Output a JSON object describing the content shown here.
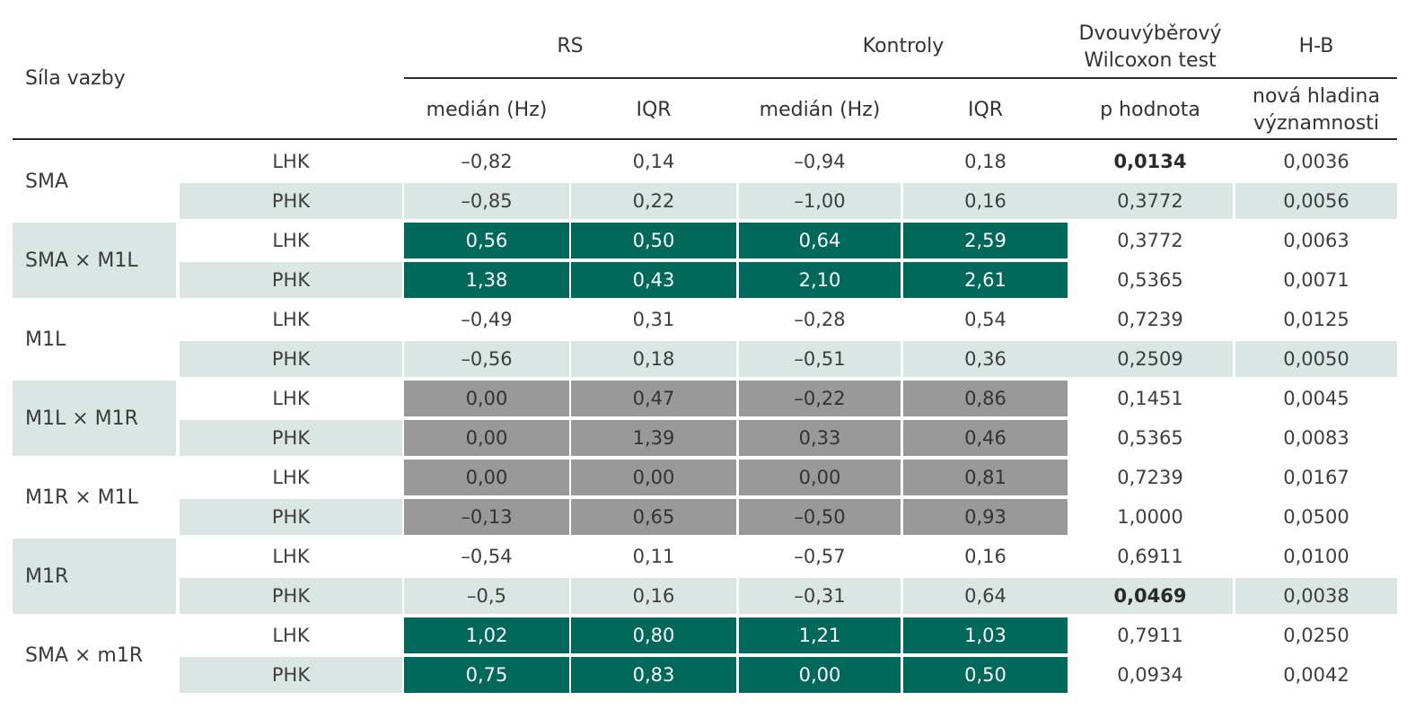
{
  "header": {
    "row_label": "Síla vazby",
    "group_rs": "RS",
    "group_kontroly": "Kontroly",
    "test_line1": "Dvouvýběrový",
    "test_line2": "Wilcoxon test",
    "hb": "H-B",
    "rs_median": "medián (Hz)",
    "rs_iqr": "IQR",
    "k_median": "medián (Hz)",
    "k_iqr": "IQR",
    "p_value": "p hodnota",
    "new_level_line1": "nová hladina",
    "new_level_line2": "významnosti"
  },
  "groups": [
    {
      "name": "SMA",
      "label_shade": "white",
      "rows": [
        {
          "hand": "LHK",
          "rs_median": "–0,82",
          "rs_iqr": "0,14",
          "k_median": "–0,94",
          "k_iqr": "0,18",
          "p": "0,0134",
          "p_bold": true,
          "hb": "0,0036",
          "style": "white"
        },
        {
          "hand": "PHK",
          "rs_median": "–0,85",
          "rs_iqr": "0,22",
          "k_median": "–1,00",
          "k_iqr": "0,16",
          "p": "0,3772",
          "p_bold": false,
          "hb": "0,0056",
          "style": "light"
        }
      ]
    },
    {
      "name": "SMA × M1L",
      "label_shade": "light",
      "rows": [
        {
          "hand": "LHK",
          "rs_median": "0,56",
          "rs_iqr": "0,50",
          "k_median": "0,64",
          "k_iqr": "2,59",
          "p": "0,3772",
          "p_bold": false,
          "hb": "0,0063",
          "style": "green"
        },
        {
          "hand": "PHK",
          "rs_median": "1,38",
          "rs_iqr": "0,43",
          "k_median": "2,10",
          "k_iqr": "2,61",
          "p": "0,5365",
          "p_bold": false,
          "hb": "0,0071",
          "style": "green"
        }
      ]
    },
    {
      "name": "M1L",
      "label_shade": "white",
      "rows": [
        {
          "hand": "LHK",
          "rs_median": "–0,49",
          "rs_iqr": "0,31",
          "k_median": "–0,28",
          "k_iqr": "0,54",
          "p": "0,7239",
          "p_bold": false,
          "hb": "0,0125",
          "style": "white"
        },
        {
          "hand": "PHK",
          "rs_median": "–0,56",
          "rs_iqr": "0,18",
          "k_median": "–0,51",
          "k_iqr": "0,36",
          "p": "0,2509",
          "p_bold": false,
          "hb": "0,0050",
          "style": "light"
        }
      ]
    },
    {
      "name": "M1L × M1R",
      "label_shade": "light",
      "rows": [
        {
          "hand": "LHK",
          "rs_median": "0,00",
          "rs_iqr": "0,47",
          "k_median": "–0,22",
          "k_iqr": "0,86",
          "p": "0,1451",
          "p_bold": false,
          "hb": "0,0045",
          "style": "gray"
        },
        {
          "hand": "PHK",
          "rs_median": "0,00",
          "rs_iqr": "1,39",
          "k_median": "0,33",
          "k_iqr": "0,46",
          "p": "0,5365",
          "p_bold": false,
          "hb": "0,0083",
          "style": "gray"
        }
      ]
    },
    {
      "name": "M1R × M1L",
      "label_shade": "white",
      "rows": [
        {
          "hand": "LHK",
          "rs_median": "0,00",
          "rs_iqr": "0,00",
          "k_median": "0,00",
          "k_iqr": "0,81",
          "p": "0,7239",
          "p_bold": false,
          "hb": "0,0167",
          "style": "gray"
        },
        {
          "hand": "PHK",
          "rs_median": "–0,13",
          "rs_iqr": "0,65",
          "k_median": "–0,50",
          "k_iqr": "0,93",
          "p": "1,0000",
          "p_bold": false,
          "hb": "0,0500",
          "style": "gray"
        }
      ]
    },
    {
      "name": "M1R",
      "label_shade": "light",
      "rows": [
        {
          "hand": "LHK",
          "rs_median": "–0,54",
          "rs_iqr": "0,11",
          "k_median": "–0,57",
          "k_iqr": "0,16",
          "p": "0,6911",
          "p_bold": false,
          "hb": "0,0100",
          "style": "white"
        },
        {
          "hand": "PHK",
          "rs_median": "–0,5",
          "rs_iqr": "0,16",
          "k_median": "–0,31",
          "k_iqr": "0,64",
          "p": "0,0469",
          "p_bold": true,
          "hb": "0,0038",
          "style": "light"
        }
      ]
    },
    {
      "name": "SMA × m1R",
      "label_shade": "white",
      "rows": [
        {
          "hand": "LHK",
          "rs_median": "1,02",
          "rs_iqr": "0,80",
          "k_median": "1,21",
          "k_iqr": "1,03",
          "p": "0,7911",
          "p_bold": false,
          "hb": "0,0250",
          "style": "green"
        },
        {
          "hand": "PHK",
          "rs_median": "0,75",
          "rs_iqr": "0,83",
          "k_median": "0,00",
          "k_iqr": "0,50",
          "p": "0,0934",
          "p_bold": false,
          "hb": "0,0042",
          "style": "green"
        }
      ]
    }
  ]
}
